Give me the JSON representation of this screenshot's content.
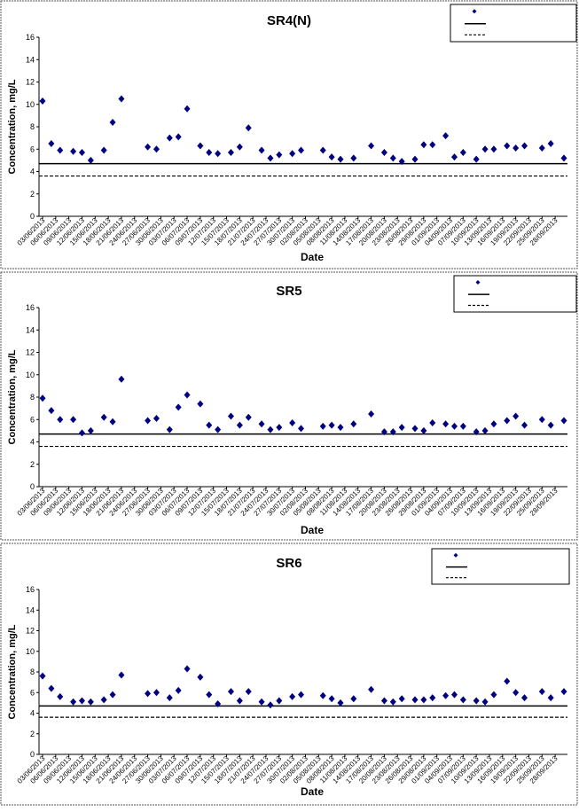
{
  "chart_data": [
    {
      "type": "scatter",
      "title": "SR4(N)",
      "xlabel": "Date",
      "ylabel": "Concentration, mg/L",
      "ylim": [
        0,
        16
      ],
      "yticks": [
        "0",
        "2",
        "4",
        "6",
        "8",
        "10",
        "12",
        "14",
        "16"
      ],
      "x_range": [
        "03/06/2013",
        "30/09/2013"
      ],
      "xtick_labels": [
        "03/06/2013",
        "06/06/2013",
        "09/06/2013",
        "12/06/2013",
        "15/06/2013",
        "18/06/2013",
        "21/06/2013",
        "24/06/2013",
        "27/06/2013",
        "30/06/2013",
        "03/07/2013",
        "06/07/2013",
        "09/07/2013",
        "12/07/2013",
        "15/07/2013",
        "18/07/2013",
        "21/07/2013",
        "24/07/2013",
        "27/07/2013",
        "30/07/2013",
        "02/08/2013",
        "05/08/2013",
        "08/08/2013",
        "11/08/2013",
        "14/08/2013",
        "17/08/2013",
        "20/08/2013",
        "23/08/2013",
        "26/08/2013",
        "29/08/2013",
        "01/09/2013",
        "04/09/2013",
        "07/09/2013",
        "10/09/2013",
        "13/09/2013",
        "16/09/2013",
        "19/09/2013",
        "22/09/2013",
        "25/09/2013",
        "28/09/2013"
      ],
      "grid": false,
      "legend_position": "top-right",
      "hlines": [
        {
          "y": 4.7,
          "style": "solid"
        },
        {
          "y": 3.6,
          "style": "dashed"
        }
      ],
      "series": [
        {
          "marker_color": "#000080",
          "points": [
            [
              "03/06/2013",
              10.3
            ],
            [
              "05/06/2013",
              6.5
            ],
            [
              "07/06/2013",
              5.9
            ],
            [
              "10/06/2013",
              5.8
            ],
            [
              "12/06/2013",
              5.7
            ],
            [
              "14/06/2013",
              5.0
            ],
            [
              "17/06/2013",
              5.9
            ],
            [
              "19/06/2013",
              8.4
            ],
            [
              "21/06/2013",
              10.5
            ],
            [
              "27/06/2013",
              6.2
            ],
            [
              "29/06/2013",
              6.0
            ],
            [
              "02/07/2013",
              7.0
            ],
            [
              "04/07/2013",
              7.1
            ],
            [
              "06/07/2013",
              9.6
            ],
            [
              "09/07/2013",
              6.3
            ],
            [
              "11/07/2013",
              5.7
            ],
            [
              "13/07/2013",
              5.6
            ],
            [
              "16/07/2013",
              5.7
            ],
            [
              "18/07/2013",
              6.2
            ],
            [
              "20/07/2013",
              7.9
            ],
            [
              "23/07/2013",
              5.9
            ],
            [
              "25/07/2013",
              5.2
            ],
            [
              "27/07/2013",
              5.5
            ],
            [
              "30/07/2013",
              5.6
            ],
            [
              "01/08/2013",
              5.9
            ],
            [
              "06/08/2013",
              5.9
            ],
            [
              "08/08/2013",
              5.3
            ],
            [
              "10/08/2013",
              5.1
            ],
            [
              "13/08/2013",
              5.2
            ],
            [
              "17/08/2013",
              6.3
            ],
            [
              "20/08/2013",
              5.7
            ],
            [
              "22/08/2013",
              5.2
            ],
            [
              "24/08/2013",
              4.9
            ],
            [
              "27/08/2013",
              5.1
            ],
            [
              "29/08/2013",
              6.4
            ],
            [
              "31/08/2013",
              6.4
            ],
            [
              "03/09/2013",
              7.2
            ],
            [
              "05/09/2013",
              5.3
            ],
            [
              "07/09/2013",
              5.7
            ],
            [
              "10/09/2013",
              5.1
            ],
            [
              "12/09/2013",
              6.0
            ],
            [
              "14/09/2013",
              6.0
            ],
            [
              "17/09/2013",
              6.3
            ],
            [
              "19/09/2013",
              6.1
            ],
            [
              "21/09/2013",
              6.3
            ],
            [
              "25/09/2013",
              6.1
            ],
            [
              "27/09/2013",
              6.5
            ],
            [
              "30/09/2013",
              5.2
            ]
          ]
        }
      ]
    },
    {
      "type": "scatter",
      "title": "SR5",
      "xlabel": "Date",
      "ylabel": "Concentration, mg/L",
      "ylim": [
        0,
        16
      ],
      "yticks": [
        "0",
        "2",
        "4",
        "6",
        "8",
        "10",
        "12",
        "14",
        "16"
      ],
      "x_range": [
        "03/06/2013",
        "30/09/2013"
      ],
      "xtick_labels": [
        "03/06/2013",
        "06/06/2013",
        "09/06/2013",
        "12/06/2013",
        "15/06/2013",
        "18/06/2013",
        "21/06/2013",
        "24/06/2013",
        "27/06/2013",
        "30/06/2013",
        "03/07/2013",
        "06/07/2013",
        "09/07/2013",
        "12/07/2013",
        "15/07/2013",
        "18/07/2013",
        "21/07/2013",
        "24/07/2013",
        "27/07/2013",
        "30/07/2013",
        "02/08/2013",
        "05/08/2013",
        "08/08/2013",
        "11/08/2013",
        "14/08/2013",
        "17/08/2013",
        "20/08/2013",
        "23/08/2013",
        "26/08/2013",
        "29/08/2013",
        "01/09/2013",
        "04/09/2013",
        "07/09/2013",
        "10/09/2013",
        "13/09/2013",
        "16/09/2013",
        "19/09/2013",
        "22/09/2013",
        "25/09/2013",
        "28/09/2013"
      ],
      "grid": false,
      "legend_position": "top-right",
      "hlines": [
        {
          "y": 4.7,
          "style": "solid"
        },
        {
          "y": 3.6,
          "style": "dashed"
        }
      ],
      "series": [
        {
          "marker_color": "#000080",
          "points": [
            [
              "03/06/2013",
              7.9
            ],
            [
              "05/06/2013",
              6.8
            ],
            [
              "07/06/2013",
              6.0
            ],
            [
              "10/06/2013",
              6.0
            ],
            [
              "12/06/2013",
              4.8
            ],
            [
              "14/06/2013",
              5.0
            ],
            [
              "17/06/2013",
              6.2
            ],
            [
              "19/06/2013",
              5.8
            ],
            [
              "21/06/2013",
              9.6
            ],
            [
              "27/06/2013",
              5.9
            ],
            [
              "29/06/2013",
              6.1
            ],
            [
              "02/07/2013",
              5.1
            ],
            [
              "04/07/2013",
              7.1
            ],
            [
              "06/07/2013",
              8.2
            ],
            [
              "09/07/2013",
              7.4
            ],
            [
              "11/07/2013",
              5.5
            ],
            [
              "13/07/2013",
              5.1
            ],
            [
              "16/07/2013",
              6.3
            ],
            [
              "18/07/2013",
              5.5
            ],
            [
              "20/07/2013",
              6.2
            ],
            [
              "23/07/2013",
              5.6
            ],
            [
              "25/07/2013",
              5.1
            ],
            [
              "27/07/2013",
              5.3
            ],
            [
              "30/07/2013",
              5.7
            ],
            [
              "01/08/2013",
              5.2
            ],
            [
              "06/08/2013",
              5.4
            ],
            [
              "08/08/2013",
              5.5
            ],
            [
              "10/08/2013",
              5.3
            ],
            [
              "13/08/2013",
              5.6
            ],
            [
              "17/08/2013",
              6.5
            ],
            [
              "20/08/2013",
              4.9
            ],
            [
              "22/08/2013",
              4.9
            ],
            [
              "24/08/2013",
              5.3
            ],
            [
              "27/08/2013",
              5.2
            ],
            [
              "29/08/2013",
              5.0
            ],
            [
              "31/08/2013",
              5.7
            ],
            [
              "03/09/2013",
              5.6
            ],
            [
              "05/09/2013",
              5.4
            ],
            [
              "07/09/2013",
              5.4
            ],
            [
              "10/09/2013",
              4.9
            ],
            [
              "12/09/2013",
              5.0
            ],
            [
              "14/09/2013",
              5.6
            ],
            [
              "17/09/2013",
              5.9
            ],
            [
              "19/09/2013",
              6.3
            ],
            [
              "21/09/2013",
              5.5
            ],
            [
              "25/09/2013",
              6.0
            ],
            [
              "27/09/2013",
              5.5
            ],
            [
              "30/09/2013",
              5.9
            ]
          ]
        }
      ]
    },
    {
      "type": "scatter",
      "title": "SR6",
      "xlabel": "Date",
      "ylabel": "Concentration, mg/L",
      "ylim": [
        0,
        16
      ],
      "yticks": [
        "0",
        "2",
        "4",
        "6",
        "8",
        "10",
        "12",
        "14",
        "16"
      ],
      "x_range": [
        "03/06/2013",
        "30/09/2013"
      ],
      "xtick_labels": [
        "03/06/2013",
        "06/06/2013",
        "09/06/2013",
        "12/06/2013",
        "15/06/2013",
        "18/06/2013",
        "21/06/2013",
        "24/06/2013",
        "27/06/2013",
        "30/06/2013",
        "03/07/2013",
        "06/07/2013",
        "09/07/2013",
        "12/07/2013",
        "15/07/2013",
        "18/07/2013",
        "21/07/2013",
        "24/07/2013",
        "27/07/2013",
        "30/07/2013",
        "02/08/2013",
        "05/08/2013",
        "08/08/2013",
        "11/08/2013",
        "14/08/2013",
        "17/08/2013",
        "20/08/2013",
        "23/08/2013",
        "26/08/2013",
        "29/08/2013",
        "01/09/2013",
        "04/09/2013",
        "07/09/2013",
        "10/09/2013",
        "13/09/2013",
        "16/09/2013",
        "19/09/2013",
        "22/09/2013",
        "25/09/2013",
        "28/09/2013"
      ],
      "grid": false,
      "legend_position": "top-right",
      "hlines": [
        {
          "y": 4.7,
          "style": "solid"
        },
        {
          "y": 3.6,
          "style": "dashed"
        }
      ],
      "series": [
        {
          "marker_color": "#000080",
          "points": [
            [
              "03/06/2013",
              7.6
            ],
            [
              "05/06/2013",
              6.4
            ],
            [
              "07/06/2013",
              5.6
            ],
            [
              "10/06/2013",
              5.1
            ],
            [
              "12/06/2013",
              5.2
            ],
            [
              "14/06/2013",
              5.1
            ],
            [
              "17/06/2013",
              5.3
            ],
            [
              "19/06/2013",
              5.8
            ],
            [
              "21/06/2013",
              7.7
            ],
            [
              "27/06/2013",
              5.9
            ],
            [
              "29/06/2013",
              6.0
            ],
            [
              "02/07/2013",
              5.5
            ],
            [
              "04/07/2013",
              6.2
            ],
            [
              "06/07/2013",
              8.3
            ],
            [
              "09/07/2013",
              7.5
            ],
            [
              "11/07/2013",
              5.8
            ],
            [
              "13/07/2013",
              4.9
            ],
            [
              "16/07/2013",
              6.1
            ],
            [
              "18/07/2013",
              5.2
            ],
            [
              "20/07/2013",
              6.1
            ],
            [
              "23/07/2013",
              5.1
            ],
            [
              "25/07/2013",
              4.8
            ],
            [
              "27/07/2013",
              5.2
            ],
            [
              "30/07/2013",
              5.6
            ],
            [
              "01/08/2013",
              5.8
            ],
            [
              "06/08/2013",
              5.7
            ],
            [
              "08/08/2013",
              5.4
            ],
            [
              "10/08/2013",
              5.0
            ],
            [
              "13/08/2013",
              5.4
            ],
            [
              "17/08/2013",
              6.3
            ],
            [
              "20/08/2013",
              5.2
            ],
            [
              "22/08/2013",
              5.1
            ],
            [
              "24/08/2013",
              5.4
            ],
            [
              "27/08/2013",
              5.3
            ],
            [
              "29/08/2013",
              5.3
            ],
            [
              "31/08/2013",
              5.5
            ],
            [
              "03/09/2013",
              5.7
            ],
            [
              "05/09/2013",
              5.8
            ],
            [
              "07/09/2013",
              5.3
            ],
            [
              "10/09/2013",
              5.2
            ],
            [
              "12/09/2013",
              5.1
            ],
            [
              "14/09/2013",
              5.8
            ],
            [
              "17/09/2013",
              7.1
            ],
            [
              "19/09/2013",
              6.0
            ],
            [
              "21/09/2013",
              5.5
            ],
            [
              "25/09/2013",
              6.1
            ],
            [
              "27/09/2013",
              5.5
            ],
            [
              "30/09/2013",
              6.1
            ]
          ]
        }
      ]
    }
  ]
}
